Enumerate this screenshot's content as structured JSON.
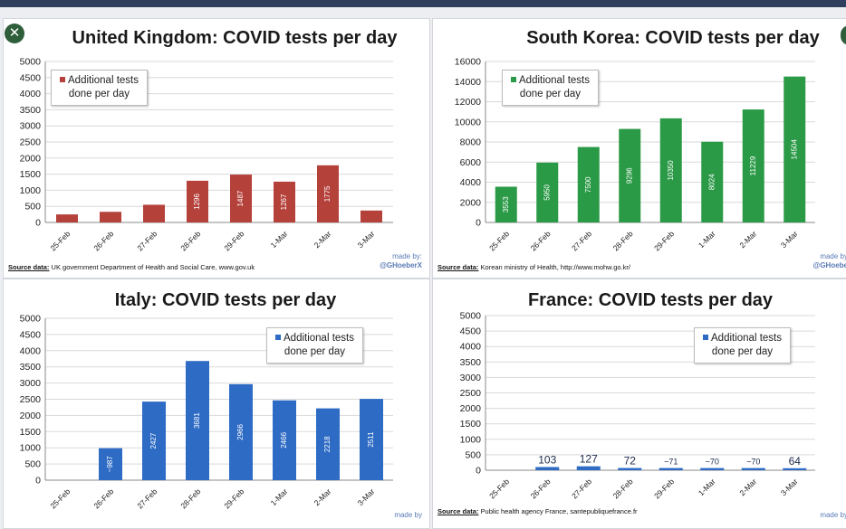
{
  "close_icon": "close-icon",
  "colors": {
    "uk": "#b5413b",
    "kr": "#2a9a46",
    "it": "#2e6bc4",
    "fr": "#2e6bc4"
  },
  "common": {
    "made_by": "made by:",
    "made_by_short": "made by",
    "handle": "@GHoeberX",
    "handle_short": "@GHoebe"
  },
  "chart_data": [
    {
      "id": "uk",
      "type": "bar",
      "title": "United Kingdom: COVID tests per day",
      "categories": [
        "25-Feb",
        "26-Feb",
        "27-Feb",
        "28-Feb",
        "29-Feb",
        "1-Mar",
        "2-Mar",
        "3-Mar"
      ],
      "values": [
        250,
        330,
        550,
        1296,
        1487,
        1267,
        1775,
        370
      ],
      "value_labels": [
        "",
        "",
        "",
        "1296",
        "1487",
        "1267",
        "1775",
        ""
      ],
      "ylim": [
        0,
        5000
      ],
      "yticks": [
        0,
        500,
        1000,
        1500,
        2000,
        2500,
        3000,
        3500,
        4000,
        4500,
        5000
      ],
      "legend": [
        "Additional tests",
        "done per day"
      ],
      "source_label": "Source data:",
      "source_text": " UK government Department of Health and Social Care, www.gov.uk"
    },
    {
      "id": "kr",
      "type": "bar",
      "title": "South Korea: COVID tests per day",
      "categories": [
        "25-Feb",
        "26-Feb",
        "27-Feb",
        "28-Feb",
        "29-Feb",
        "1-Mar",
        "2-Mar",
        "3-Mar"
      ],
      "values": [
        3553,
        5950,
        7500,
        9296,
        10350,
        8024,
        11229,
        14504
      ],
      "value_labels": [
        "3553",
        "5950",
        "7500",
        "9296",
        "10350",
        "8024",
        "11229",
        "14504"
      ],
      "ylim": [
        0,
        16000
      ],
      "yticks": [
        0,
        2000,
        4000,
        6000,
        8000,
        10000,
        12000,
        14000,
        16000
      ],
      "legend": [
        "Additional tests",
        "done per day"
      ],
      "source_label": "Source data:",
      "source_text": " Korean ministry of Health, http://www.mohw.go.kr/"
    },
    {
      "id": "it",
      "type": "bar",
      "title": "Italy: COVID tests per day",
      "categories": [
        "25-Feb",
        "26-Feb",
        "27-Feb",
        "28-Feb",
        "29-Feb",
        "1-Mar",
        "2-Mar",
        "3-Mar"
      ],
      "values": [
        0,
        987,
        2427,
        3681,
        2966,
        2466,
        2218,
        2511
      ],
      "value_labels": [
        "",
        "~987",
        "2427",
        "3681",
        "2966",
        "2466",
        "2218",
        "2511"
      ],
      "ylim": [
        0,
        5000
      ],
      "yticks": [
        0,
        500,
        1000,
        1500,
        2000,
        2500,
        3000,
        3500,
        4000,
        4500,
        5000
      ],
      "legend": [
        "Additional tests",
        "done per day"
      ],
      "source_label": "",
      "source_text": ""
    },
    {
      "id": "fr",
      "type": "bar",
      "title": "France: COVID tests per day",
      "categories": [
        "25-Feb",
        "26-Feb",
        "27-Feb",
        "28-Feb",
        "29-Feb",
        "1-Mar",
        "2-Mar",
        "3-Mar"
      ],
      "values": [
        0,
        103,
        127,
        72,
        71,
        70,
        70,
        64
      ],
      "value_labels": [
        "",
        "103",
        "127",
        "72",
        "~71",
        "~70",
        "~70",
        "64"
      ],
      "ylim": [
        0,
        5000
      ],
      "yticks": [
        0,
        500,
        1000,
        1500,
        2000,
        2500,
        3000,
        3500,
        4000,
        4500,
        5000
      ],
      "legend": [
        "Additional tests",
        "done per day"
      ],
      "source_label": "Source data:",
      "source_text": " Public health agency France, santepubliquefrance.fr"
    }
  ]
}
